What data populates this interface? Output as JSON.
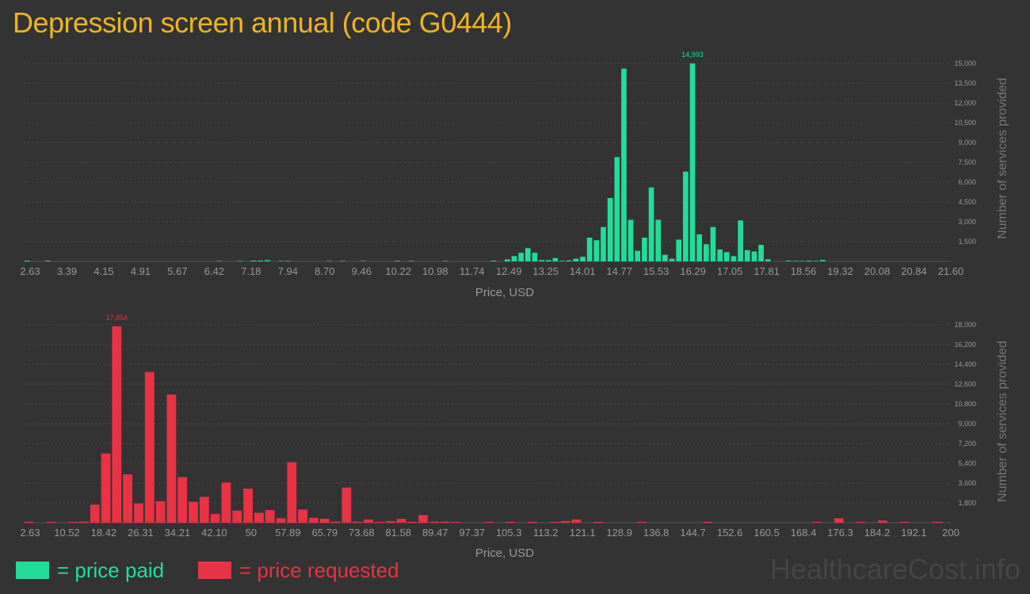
{
  "title": "Depression screen annual (code G0444)",
  "legend": {
    "paid_label": "= price paid",
    "requested_label": "= price requested",
    "paid_color": "#22dd99",
    "requested_color": "#e83344"
  },
  "watermark": "HealthcareCost.info",
  "colors": {
    "background": "#333333",
    "title": "#f0b323",
    "axis_text": "#999999",
    "grid": "#4a4a4a"
  },
  "chart_data": [
    {
      "type": "bar",
      "color": "#22dd99",
      "xlabel": "Price, USD",
      "ylabel": "Number of services provided",
      "xlim": [
        2.63,
        21.6
      ],
      "ylim": [
        0,
        15000
      ],
      "xticks": [
        "2.63",
        "3.39",
        "4.15",
        "4.91",
        "5.67",
        "6.42",
        "7.18",
        "7.94",
        "8.70",
        "9.46",
        "10.22",
        "10.98",
        "11.74",
        "12.49",
        "13.25",
        "14.01",
        "14.77",
        "15.53",
        "16.29",
        "17.05",
        "17.81",
        "18.56",
        "19.32",
        "20.08",
        "20.84",
        "21.60"
      ],
      "yticks": [
        "1,500",
        "3,000",
        "4,500",
        "6,000",
        "7,500",
        "9,000",
        "10,500",
        "12,000",
        "13,500",
        "15,000"
      ],
      "peak_label": "14,993",
      "bins": 134,
      "bars": [
        [
          0,
          60
        ],
        [
          3,
          60
        ],
        [
          28,
          40
        ],
        [
          31,
          40
        ],
        [
          33,
          60
        ],
        [
          34,
          60
        ],
        [
          35,
          90
        ],
        [
          37,
          40
        ],
        [
          38,
          40
        ],
        [
          44,
          40
        ],
        [
          46,
          40
        ],
        [
          49,
          40
        ],
        [
          54,
          50
        ],
        [
          56,
          40
        ],
        [
          61,
          40
        ],
        [
          68,
          60
        ],
        [
          70,
          150
        ],
        [
          71,
          400
        ],
        [
          72,
          650
        ],
        [
          73,
          1000
        ],
        [
          74,
          650
        ],
        [
          75,
          100
        ],
        [
          76,
          100
        ],
        [
          77,
          250
        ],
        [
          78,
          50
        ],
        [
          79,
          80
        ],
        [
          80,
          200
        ],
        [
          81,
          350
        ],
        [
          82,
          1800
        ],
        [
          83,
          1600
        ],
        [
          84,
          2600
        ],
        [
          85,
          4800
        ],
        [
          86,
          7900
        ],
        [
          87,
          14600
        ],
        [
          88,
          3150
        ],
        [
          89,
          800
        ],
        [
          90,
          1800
        ],
        [
          91,
          5600
        ],
        [
          92,
          3150
        ],
        [
          93,
          500
        ],
        [
          94,
          200
        ],
        [
          95,
          1650
        ],
        [
          96,
          6800
        ],
        [
          97,
          14993
        ],
        [
          98,
          2050
        ],
        [
          99,
          1300
        ],
        [
          100,
          2600
        ],
        [
          101,
          900
        ],
        [
          102,
          700
        ],
        [
          103,
          400
        ],
        [
          104,
          3100
        ],
        [
          105,
          850
        ],
        [
          106,
          750
        ],
        [
          107,
          1250
        ],
        [
          108,
          150
        ],
        [
          111,
          60
        ],
        [
          112,
          40
        ],
        [
          113,
          40
        ],
        [
          114,
          60
        ],
        [
          115,
          40
        ],
        [
          116,
          100
        ]
      ]
    },
    {
      "type": "bar",
      "color": "#e83344",
      "xlabel": "Price, USD",
      "ylabel": "Number of services provided",
      "xlim": [
        2.63,
        200
      ],
      "ylim": [
        0,
        18000
      ],
      "xticks": [
        "2.63",
        "10.52",
        "18.42",
        "26.31",
        "34.21",
        "42.10",
        "50",
        "57.89",
        "65.79",
        "73.68",
        "81.58",
        "89.47",
        "97.37",
        "105.3",
        "113.2",
        "121.1",
        "128.9",
        "136.8",
        "144.7",
        "152.6",
        "160.5",
        "168.4",
        "176.3",
        "184.2",
        "192.1",
        "200"
      ],
      "yticks": [
        "1,800",
        "3,600",
        "5,400",
        "7,200",
        "9,000",
        "10,800",
        "12,600",
        "14,400",
        "16,200",
        "18,000"
      ],
      "peak_label": "17,854",
      "bins": 84,
      "bars": [
        [
          0,
          80
        ],
        [
          2,
          80
        ],
        [
          4,
          80
        ],
        [
          5,
          100
        ],
        [
          6,
          1650
        ],
        [
          7,
          6300
        ],
        [
          8,
          17854
        ],
        [
          9,
          4400
        ],
        [
          10,
          1750
        ],
        [
          11,
          13700
        ],
        [
          12,
          1950
        ],
        [
          13,
          11650
        ],
        [
          14,
          4150
        ],
        [
          15,
          1900
        ],
        [
          16,
          2350
        ],
        [
          17,
          800
        ],
        [
          18,
          3650
        ],
        [
          19,
          1100
        ],
        [
          20,
          3100
        ],
        [
          21,
          900
        ],
        [
          22,
          1150
        ],
        [
          23,
          400
        ],
        [
          24,
          5500
        ],
        [
          25,
          1200
        ],
        [
          26,
          450
        ],
        [
          27,
          350
        ],
        [
          28,
          100
        ],
        [
          29,
          3200
        ],
        [
          30,
          100
        ],
        [
          31,
          300
        ],
        [
          32,
          80
        ],
        [
          33,
          150
        ],
        [
          34,
          350
        ],
        [
          35,
          80
        ],
        [
          36,
          700
        ],
        [
          37,
          100
        ],
        [
          38,
          100
        ],
        [
          39,
          80
        ],
        [
          42,
          80
        ],
        [
          44,
          80
        ],
        [
          46,
          80
        ],
        [
          48,
          80
        ],
        [
          49,
          150
        ],
        [
          50,
          300
        ],
        [
          52,
          80
        ],
        [
          56,
          80
        ],
        [
          62,
          80
        ],
        [
          72,
          80
        ],
        [
          74,
          400
        ],
        [
          76,
          80
        ],
        [
          78,
          200
        ],
        [
          80,
          80
        ],
        [
          83,
          80
        ]
      ]
    }
  ]
}
